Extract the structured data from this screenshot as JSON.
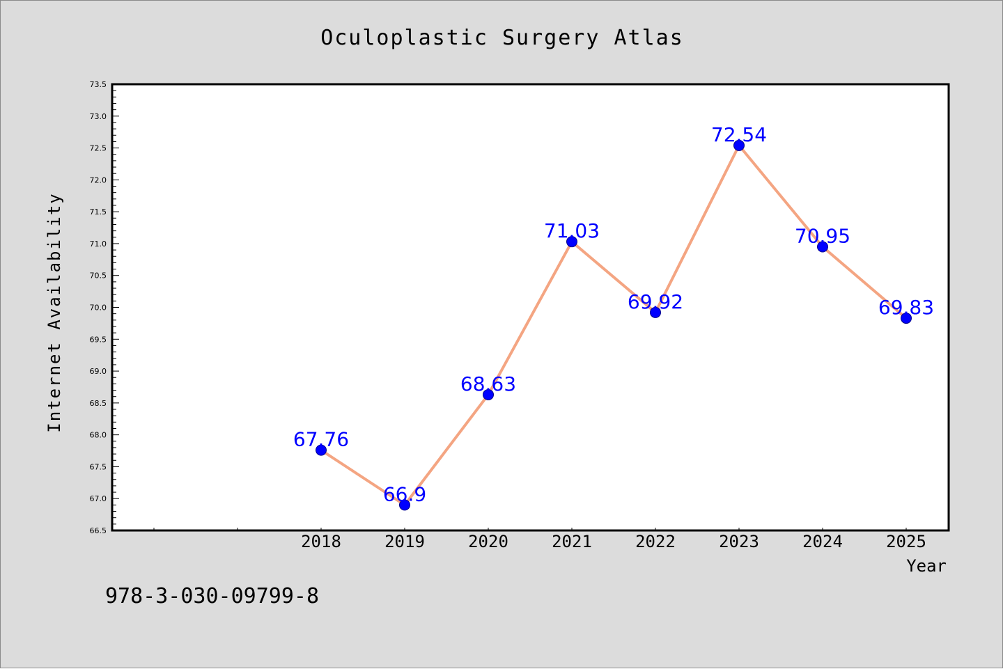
{
  "chart_data": {
    "type": "line",
    "title": "Oculoplastic Surgery Atlas",
    "xlabel": "Year",
    "ylabel": "Internet Availability",
    "categories": [
      "2018",
      "2019",
      "2020",
      "2021",
      "2022",
      "2023",
      "2024",
      "2025"
    ],
    "series": [
      {
        "values": [
          67.76,
          66.9,
          68.63,
          71.03,
          69.92,
          72.54,
          70.95,
          69.83
        ],
        "data_labels": [
          "67.76",
          "66.9",
          "68.63",
          "71.03",
          "69.92",
          "72.54",
          "70.95",
          "69.83"
        ]
      }
    ],
    "ylim": [
      66.5,
      73.5
    ],
    "y_ticks": [
      "66.5",
      "67.0",
      "67.5",
      "68.0",
      "68.5",
      "69.0",
      "69.5",
      "70.0",
      "70.5",
      "71.0",
      "71.5",
      "72.0",
      "72.5",
      "73.0",
      "73.5"
    ],
    "grid": false,
    "legend": "none",
    "line_color": "#f4a582",
    "marker_color": "#0000ff",
    "label_color": "#0000ff"
  },
  "footer": {
    "isbn": "978-3-030-09799-8"
  }
}
